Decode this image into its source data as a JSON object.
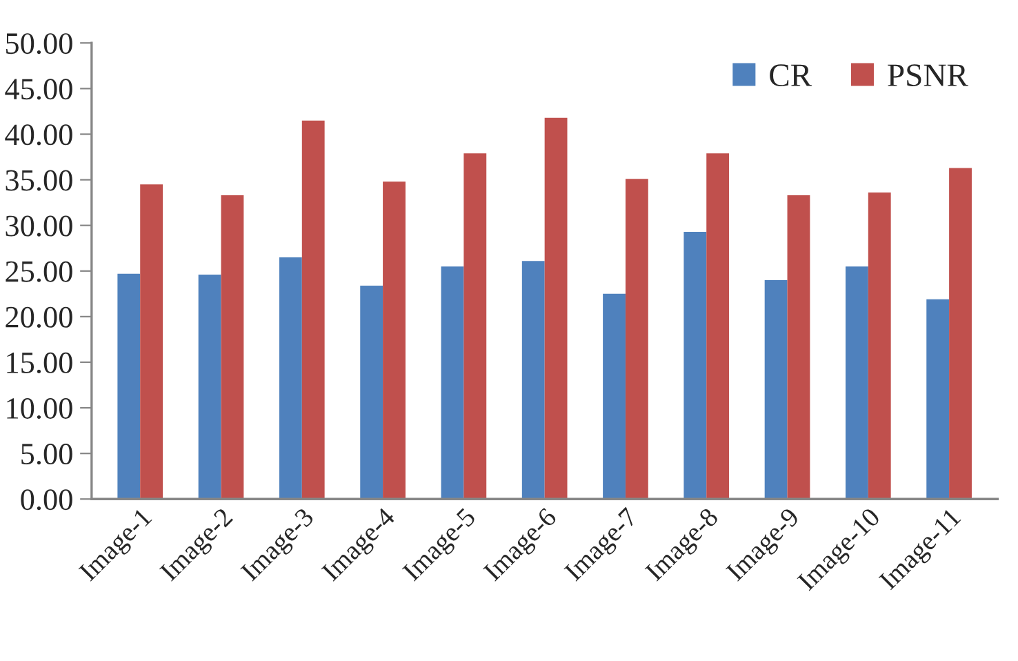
{
  "chart_data": {
    "type": "bar",
    "categories": [
      "Image-1",
      "Image-2",
      "Image-3",
      "Image-4",
      "Image-5",
      "Image-6",
      "Image-7",
      "Image-8",
      "Image-9",
      "Image-10",
      "Image-11"
    ],
    "series": [
      {
        "name": "CR",
        "color": "#4f81bd",
        "values": [
          24.7,
          24.6,
          26.5,
          23.4,
          25.5,
          26.1,
          22.5,
          29.3,
          24.0,
          25.5,
          21.9
        ]
      },
      {
        "name": "PSNR",
        "color": "#c0504d",
        "values": [
          34.5,
          33.3,
          41.5,
          34.8,
          37.9,
          41.8,
          35.1,
          37.9,
          33.3,
          33.6,
          36.3
        ]
      }
    ],
    "ylim": [
      0,
      50
    ],
    "yticks": [
      {
        "value": 0,
        "label": "0.00"
      },
      {
        "value": 5,
        "label": "5.00"
      },
      {
        "value": 10,
        "label": "10.00"
      },
      {
        "value": 15,
        "label": "15.00"
      },
      {
        "value": 20,
        "label": "20.00"
      },
      {
        "value": 25,
        "label": "25.00"
      },
      {
        "value": 30,
        "label": "30.00"
      },
      {
        "value": 35,
        "label": "35.00"
      },
      {
        "value": 40,
        "label": "40.00"
      },
      {
        "value": 45,
        "label": "45.00"
      },
      {
        "value": 50,
        "label": "50.00"
      }
    ],
    "grid": false,
    "legend": "top right"
  }
}
